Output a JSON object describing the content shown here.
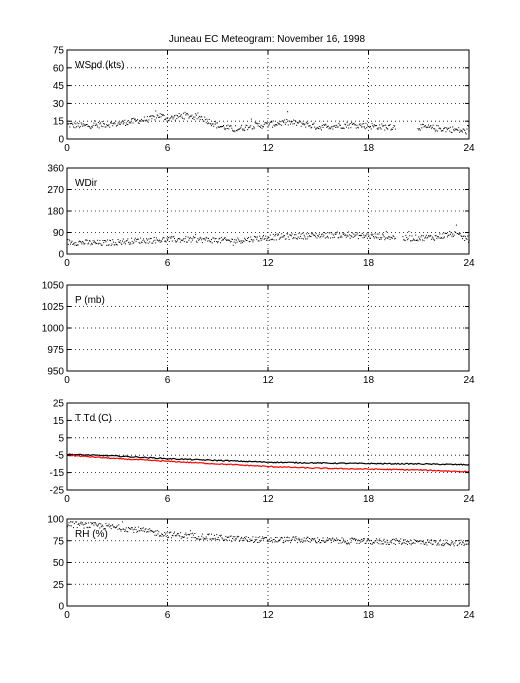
{
  "title": "Juneau EC Meteogram:  November 16, 1998",
  "chart_data": [
    {
      "type": "scatter",
      "panel_label": "WSpd (kts)",
      "xlim": [
        0,
        24
      ],
      "ylim": [
        0,
        75
      ],
      "xticks": [
        0,
        6,
        12,
        18,
        24
      ],
      "yticks": [
        0,
        15,
        30,
        45,
        60,
        75
      ],
      "grid": true,
      "series": [
        {
          "color": "#000000",
          "marker": "dot",
          "gaps": [
            [
              19.6,
              20.9
            ]
          ],
          "x": [
            0,
            1,
            2,
            3,
            4,
            5,
            5.5,
            6,
            7,
            8,
            9,
            10,
            11,
            12,
            13,
            14,
            15,
            16,
            17,
            18,
            19,
            19.5,
            21,
            22,
            23,
            24
          ],
          "y": [
            12,
            11,
            12,
            13,
            15,
            17,
            20,
            17,
            20,
            18,
            11,
            8,
            11,
            12,
            14,
            13,
            10,
            11,
            12,
            11,
            10,
            10,
            10,
            9,
            8,
            6
          ]
        }
      ]
    },
    {
      "type": "scatter",
      "panel_label": "WDir",
      "xlim": [
        0,
        24
      ],
      "ylim": [
        0,
        360
      ],
      "xticks": [
        0,
        6,
        12,
        18,
        24
      ],
      "yticks": [
        0,
        90,
        180,
        270,
        360
      ],
      "grid": true,
      "series": [
        {
          "color": "#000000",
          "marker": "dot",
          "gaps": [
            [
              19.6,
              20.0
            ]
          ],
          "x": [
            0,
            2,
            4,
            6,
            8,
            10,
            12,
            14,
            16,
            18,
            19.5,
            20,
            22,
            23,
            24
          ],
          "y": [
            50,
            45,
            55,
            60,
            60,
            55,
            70,
            75,
            80,
            75,
            70,
            65,
            70,
            85,
            60
          ]
        }
      ]
    },
    {
      "type": "scatter",
      "panel_label": "P (mb)",
      "xlim": [
        0,
        24
      ],
      "ylim": [
        950,
        1050
      ],
      "xticks": [
        0,
        6,
        12,
        18,
        24
      ],
      "yticks": [
        950,
        975,
        1000,
        1025,
        1050
      ],
      "grid": true,
      "series": []
    },
    {
      "type": "line",
      "panel_label": "T Td (C)",
      "xlim": [
        0,
        24
      ],
      "ylim": [
        -25,
        25
      ],
      "xticks": [
        0,
        6,
        12,
        18,
        24
      ],
      "yticks": [
        -25,
        -15,
        -5,
        5,
        15,
        25
      ],
      "grid": true,
      "series": [
        {
          "color": "#000000",
          "x": [
            0,
            3,
            6,
            9,
            12,
            15,
            18,
            21,
            24
          ],
          "y": [
            -4.5,
            -5.5,
            -7,
            -8,
            -9,
            -9.5,
            -9.8,
            -10,
            -10.5
          ]
        },
        {
          "color": "#ff0000",
          "x": [
            0,
            3,
            6,
            9,
            12,
            15,
            18,
            21,
            24
          ],
          "y": [
            -5,
            -7,
            -8.5,
            -10,
            -11.5,
            -12.5,
            -13,
            -13.5,
            -14.5
          ]
        }
      ]
    },
    {
      "type": "scatter",
      "panel_label": "RH (%)",
      "xlim": [
        0,
        24
      ],
      "ylim": [
        0,
        100
      ],
      "xticks": [
        0,
        6,
        12,
        18,
        24
      ],
      "yticks": [
        0,
        25,
        50,
        75,
        100
      ],
      "grid": true,
      "series": [
        {
          "color": "#000000",
          "marker": "dot",
          "x": [
            0,
            2,
            4,
            6,
            8,
            10,
            12,
            14,
            16,
            18,
            20,
            22,
            24
          ],
          "y": [
            94,
            92,
            88,
            82,
            80,
            77,
            76,
            76,
            75,
            74,
            74,
            73,
            72
          ]
        }
      ]
    }
  ]
}
